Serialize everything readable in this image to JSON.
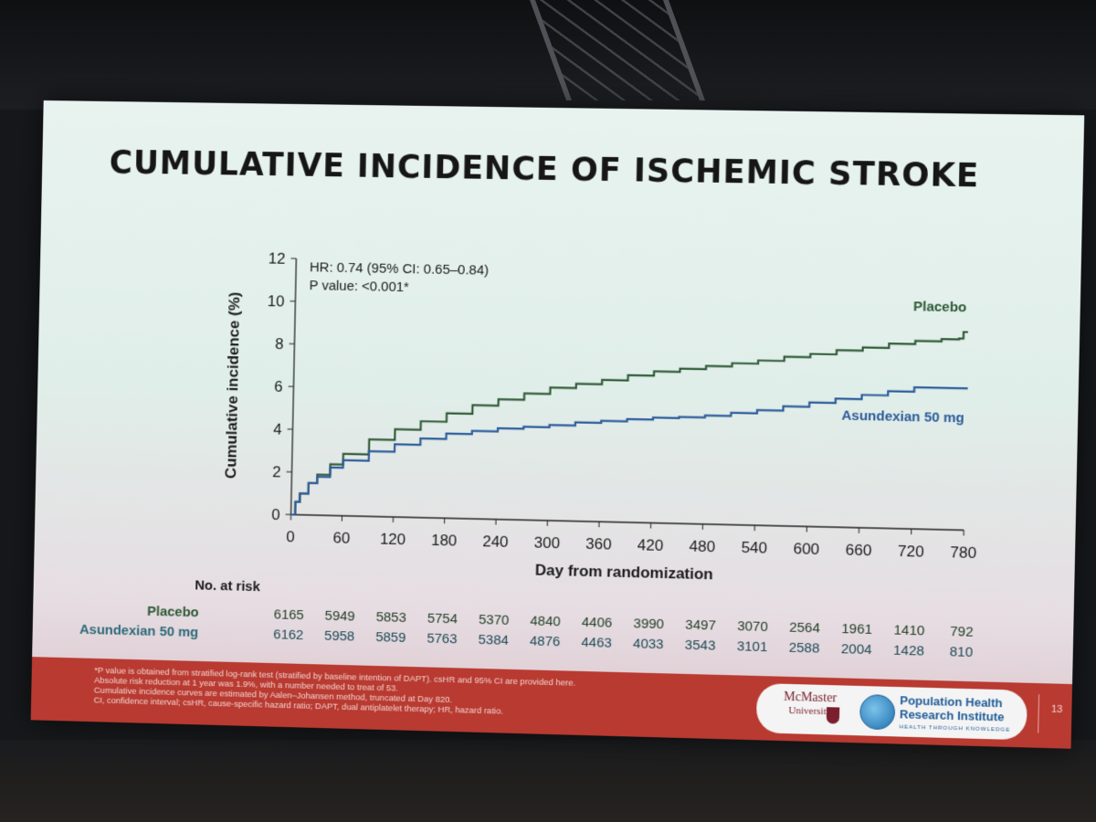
{
  "slide": {
    "title": "CUMULATIVE INCIDENCE OF ISCHEMIC STROKE",
    "page_number": "13"
  },
  "chart_data": {
    "type": "line",
    "title": "CUMULATIVE INCIDENCE OF ISCHEMIC STROKE",
    "xlabel": "Day from randomization",
    "ylabel": "Cumulative incidence (%)",
    "xlim": [
      0,
      780
    ],
    "ylim": [
      0,
      12
    ],
    "xticks": [
      0,
      60,
      120,
      180,
      240,
      300,
      360,
      420,
      480,
      540,
      600,
      660,
      720,
      780
    ],
    "yticks": [
      0,
      2,
      4,
      6,
      8,
      10,
      12
    ],
    "grid": false,
    "annotation": [
      "HR: 0.74 (95% CI: 0.65–0.84)",
      "P value: <0.001*"
    ],
    "series": [
      {
        "name": "Placebo",
        "color": "#2e5a36",
        "x": [
          0,
          5,
          10,
          20,
          30,
          45,
          60,
          90,
          120,
          150,
          180,
          210,
          240,
          270,
          300,
          330,
          360,
          390,
          420,
          450,
          480,
          510,
          540,
          570,
          600,
          630,
          660,
          690,
          720,
          750,
          770,
          775,
          780
        ],
        "y": [
          0,
          0.6,
          1.0,
          1.5,
          1.9,
          2.4,
          2.9,
          3.6,
          4.1,
          4.5,
          4.9,
          5.3,
          5.6,
          5.9,
          6.2,
          6.4,
          6.6,
          6.85,
          7.05,
          7.2,
          7.35,
          7.5,
          7.65,
          7.85,
          8.0,
          8.2,
          8.35,
          8.55,
          8.7,
          8.8,
          8.85,
          9.15,
          9.15
        ]
      },
      {
        "name": "Asundexian 50 mg",
        "color": "#2b5b9a",
        "x": [
          0,
          5,
          10,
          20,
          30,
          45,
          60,
          90,
          120,
          150,
          180,
          210,
          240,
          270,
          300,
          330,
          360,
          390,
          420,
          450,
          480,
          510,
          540,
          570,
          600,
          630,
          660,
          690,
          720,
          750,
          780
        ],
        "y": [
          0,
          0.6,
          1.0,
          1.5,
          1.8,
          2.25,
          2.6,
          3.05,
          3.4,
          3.7,
          3.95,
          4.1,
          4.25,
          4.35,
          4.45,
          4.6,
          4.7,
          4.8,
          4.9,
          4.95,
          5.05,
          5.2,
          5.35,
          5.55,
          5.75,
          5.95,
          6.15,
          6.35,
          6.55,
          6.55,
          6.5
        ]
      }
    ]
  },
  "risk_table": {
    "title": "No. at risk",
    "rows": [
      {
        "label": "Placebo",
        "color": "#2e5a36",
        "values": [
          "6165",
          "5949",
          "5853",
          "5754",
          "5370",
          "4840",
          "4406",
          "3990",
          "3497",
          "3070",
          "2564",
          "1961",
          "1410",
          "792"
        ]
      },
      {
        "label": "Asundexian 50 mg",
        "color": "#2b6a78",
        "values": [
          "6162",
          "5958",
          "5859",
          "5763",
          "5384",
          "4876",
          "4463",
          "4033",
          "3543",
          "3101",
          "2588",
          "2004",
          "1428",
          "810"
        ]
      }
    ]
  },
  "footnotes": [
    "*P value is obtained from stratified log-rank test (stratified by baseline intention of DAPT). csHR and 95% CI are provided here.",
    "Absolute risk reduction at 1 year was 1.9%, with a number needed to treat of 53.",
    "Cumulative incidence curves are estimated by Aalen–Johansen method, truncated at Day 820.",
    "CI, confidence interval; csHR, cause-specific hazard ratio; DAPT, dual antiplatelet therapy; HR, hazard ratio."
  ],
  "logos": {
    "mcmaster_line1": "McMaster",
    "mcmaster_line2": "University",
    "phri_line1": "Population Health",
    "phri_line2": "Research Institute",
    "phri_tagline": "HEALTH THROUGH KNOWLEDGE"
  },
  "colors": {
    "footer": "#b93a31",
    "placebo": "#2e5a36",
    "asundexian": "#2b5b9a"
  },
  "icons": [
    "mcmaster-crest-icon",
    "globe-icon"
  ]
}
